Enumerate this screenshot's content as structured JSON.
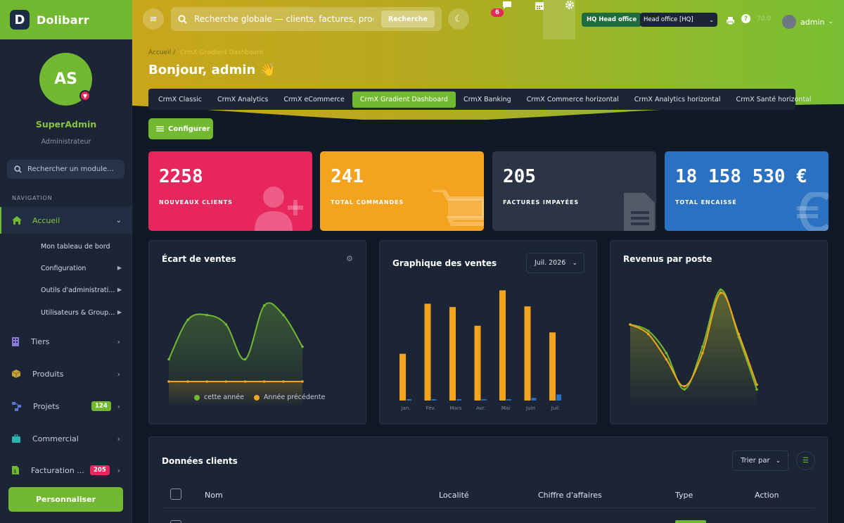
{
  "app": {
    "name": "Dolibarr",
    "logo_letter": "D"
  },
  "user": {
    "initials": "AS",
    "name": "SuperAdmin",
    "role": "Administrateur"
  },
  "sidebar": {
    "search_placeholder": "Rechercher un module...",
    "nav_label": "NAVIGATION",
    "active": {
      "label": "Accueil"
    },
    "sub_items": [
      {
        "label": "Mon tableau de bord"
      },
      {
        "label": "Configuration"
      },
      {
        "label": "Outils d'administrati..."
      },
      {
        "label": "Utilisateurs & Group..."
      }
    ],
    "items": [
      {
        "label": "Tiers"
      },
      {
        "label": "Produits"
      },
      {
        "label": "Projets",
        "badge": "124"
      },
      {
        "label": "Commercial"
      },
      {
        "label": "Facturation ...",
        "badge": "205"
      }
    ],
    "personalize": "Personnaliser"
  },
  "topbar": {
    "search_placeholder": "Recherche globale — clients, factures, produits",
    "search_button": "Recherche",
    "notif_count": "6",
    "hq_badge": "HQ Head office",
    "entity": "Head office [HQ]",
    "faded": "70.0",
    "admin": "admin"
  },
  "breadcrumb": {
    "home": "Accueil",
    "sep": "/",
    "current": "CrmX Gradient Dashboard"
  },
  "greeting": "Bonjour, admin 👋",
  "tabs": [
    {
      "label": "CrmX Classic"
    },
    {
      "label": "CrmX Analytics"
    },
    {
      "label": "CrmX eCommerce"
    },
    {
      "label": "CrmX Gradient Dashboard",
      "active": true
    },
    {
      "label": "CrmX Banking"
    },
    {
      "label": "CrmX Commerce horizontal"
    },
    {
      "label": "CrmX Analytics horizontal"
    },
    {
      "label": "CrmX Santé horizontal"
    }
  ],
  "configure": "Configurer",
  "kpis": [
    {
      "value": "2258",
      "label": "NOUVEAUX CLIENTS",
      "color": "#e7265e"
    },
    {
      "value": "241",
      "label": "TOTAL COMMANDES",
      "color": "#f4a31f"
    },
    {
      "value": "205",
      "label": "FACTURES IMPAYÉES",
      "color": "#2c3546"
    },
    {
      "value": "18 158 530 €",
      "label": "TOTAL ENCAISSÉ",
      "color": "#2b71c1"
    }
  ],
  "cards": {
    "ecart": {
      "title": "Écart de ventes",
      "legend": [
        "cette année",
        "Année précédente"
      ]
    },
    "ventes": {
      "title": "Graphique des ventes",
      "period": "Juil. 2026"
    },
    "revenus": {
      "title": "Revenus par poste"
    }
  },
  "table": {
    "title": "Données clients",
    "sort": "Trier par",
    "columns": [
      "Nom",
      "Localité",
      "Chiffre d'affaires",
      "Type",
      "Action"
    ]
  },
  "chart_data": [
    {
      "type": "area",
      "title": "Écart de ventes",
      "x": [
        1,
        2,
        3,
        4,
        5,
        6,
        7,
        8
      ],
      "series": [
        {
          "name": "cette année",
          "values": [
            30,
            55,
            58,
            52,
            30,
            64,
            58,
            38
          ],
          "color": "#72b831"
        },
        {
          "name": "Année précédente",
          "values": [
            16,
            16,
            16,
            16,
            16,
            16,
            16,
            16
          ],
          "color": "#f4a31f"
        }
      ],
      "ylim": [
        0,
        80
      ],
      "legend": "bottom"
    },
    {
      "type": "bar",
      "title": "Graphique des ventes",
      "categories": [
        "Jan.",
        "Fév.",
        "Mars",
        "Avr.",
        "Mai",
        "Juin",
        "Juil."
      ],
      "series": [
        {
          "values": [
            70,
            145,
            140,
            112,
            165,
            141,
            102
          ],
          "color": "#f4a31f"
        },
        {
          "values": [
            2,
            2,
            2,
            2,
            2,
            4,
            9
          ],
          "color": "#2b71c1"
        }
      ],
      "ylim": [
        0,
        175
      ]
    },
    {
      "type": "area",
      "title": "Revenus par poste",
      "x": [
        1,
        2,
        3,
        4,
        5,
        6,
        7,
        8
      ],
      "series": [
        {
          "values": [
            52,
            48,
            34,
            11,
            38,
            74,
            44,
            11
          ],
          "color": "#72b831"
        },
        {
          "values": [
            52,
            46,
            30,
            13,
            34,
            72,
            46,
            14
          ],
          "color": "#f4a31f"
        }
      ],
      "ylim": [
        0,
        80
      ]
    }
  ]
}
